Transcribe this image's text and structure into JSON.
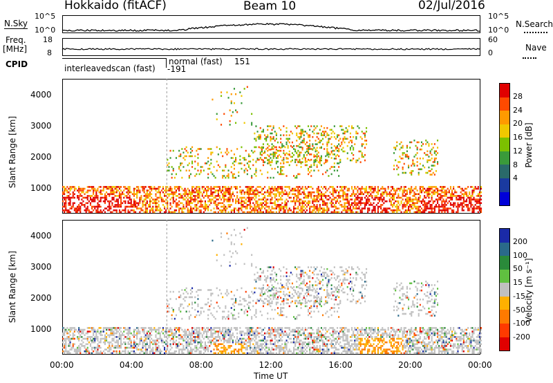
{
  "header": {
    "station": "Hokkaido (fitACF)",
    "beam": "Beam 10",
    "date": "02/Jul/2016"
  },
  "panels": {
    "nsky": {
      "label": "N.Sky",
      "ticks": [
        "10^5",
        "10^0"
      ],
      "right_ticks": [
        "10^5",
        "10^0"
      ],
      "right_label": "N.Search"
    },
    "freq": {
      "label_top": "Freq.",
      "label_unit": "[MHz]",
      "ticks": [
        "18",
        "8"
      ],
      "right_ticks": [
        "60",
        "0"
      ],
      "right_label": "Nave"
    },
    "cpid": {
      "label": "CPID",
      "annot_a": "interleavedscan (fast)",
      "annot_a_id": "-191",
      "annot_b": "normal (fast)",
      "annot_b_id": "151"
    }
  },
  "x_axis": {
    "label": "Time UT",
    "ticks": [
      "00:00",
      "04:00",
      "08:00",
      "12:00",
      "16:00",
      "20:00",
      "00:00"
    ]
  },
  "chart_data": [
    {
      "type": "heatmap",
      "title": "Power",
      "ylabel": "Slant Range [km]",
      "yticks": [
        1000,
        2000,
        3000,
        4000
      ],
      "ylim": [
        180,
        4500
      ],
      "xlim": [
        0,
        24
      ],
      "colorbar": {
        "label": "Power [dB]",
        "ticks": [
          "28",
          "24",
          "20",
          "16",
          "12",
          "8",
          "4"
        ],
        "colors": [
          "#e00000",
          "#ff4a00",
          "#ff9a00",
          "#f0c800",
          "#7cc000",
          "#3a9a3a",
          "#2a6a6a",
          "#1a3aa0",
          "#0000d8"
        ]
      }
    },
    {
      "type": "heatmap",
      "title": "Velocity",
      "ylabel": "Slant Range [km]",
      "yticks": [
        1000,
        2000,
        3000,
        4000
      ],
      "ylim": [
        180,
        4500
      ],
      "xlim": [
        0,
        24
      ],
      "colorbar": {
        "label": "Velocity [m s⁻¹]",
        "ticks": [
          "200",
          "100",
          "50",
          "15",
          "-15",
          "-50",
          "-100",
          "-200"
        ],
        "colors": [
          "#1a2aa8",
          "#2a6a8a",
          "#2a8a3a",
          "#60c040",
          "#c0c0c0",
          "#ffb000",
          "#ff7a00",
          "#ff3a00",
          "#e00000"
        ]
      }
    }
  ]
}
